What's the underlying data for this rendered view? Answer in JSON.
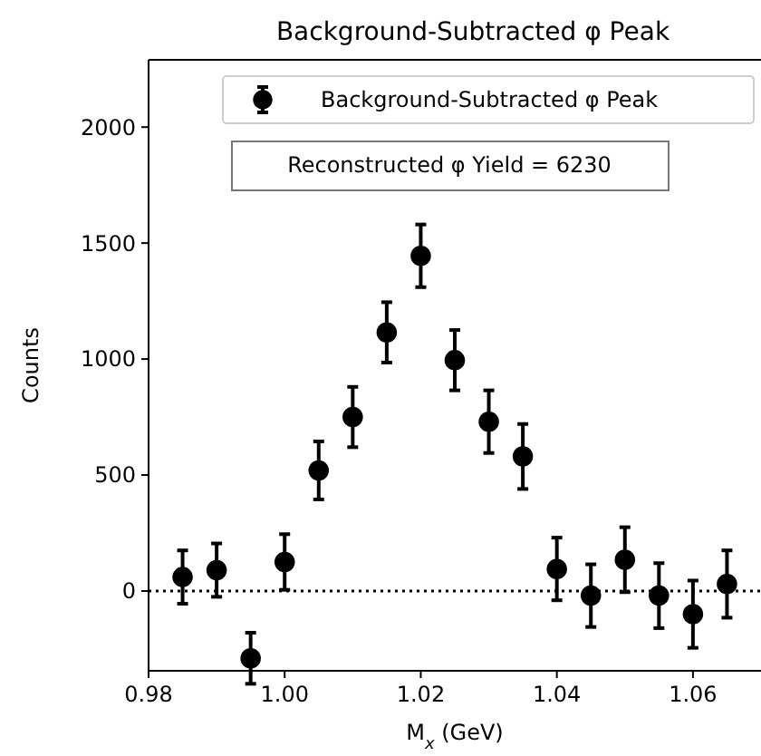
{
  "chart_data": {
    "type": "scatter",
    "title": "Background-Subtracted φ Peak",
    "xlabel": "M$_{x}$ (GeV)",
    "ylabel": "Counts",
    "x": [
      0.985,
      0.99,
      0.995,
      1.0,
      1.005,
      1.01,
      1.015,
      1.02,
      1.025,
      1.03,
      1.035,
      1.04,
      1.045,
      1.05,
      1.055,
      1.06,
      1.065
    ],
    "series": [
      {
        "name": "Background-Subtracted φ Peak",
        "color": "#000000",
        "values": [
          60,
          90,
          -290,
          125,
          520,
          750,
          1115,
          1445,
          995,
          730,
          580,
          95,
          -20,
          135,
          -20,
          -100,
          30
        ],
        "errors": [
          115,
          115,
          110,
          120,
          125,
          130,
          130,
          135,
          130,
          135,
          140,
          135,
          135,
          140,
          140,
          145,
          145
        ]
      }
    ],
    "xlim": [
      0.98,
      1.07
    ],
    "xticks": [
      {
        "value": 0.98,
        "label": "0.98"
      },
      {
        "value": 1.0,
        "label": "1.00"
      },
      {
        "value": 1.02,
        "label": "1.02"
      },
      {
        "value": 1.04,
        "label": "1.04"
      },
      {
        "value": 1.06,
        "label": "1.06"
      }
    ],
    "ylim": [
      -344,
      2290
    ],
    "yticks": [
      0,
      500,
      1000,
      1500,
      2000
    ],
    "ref_lines": [
      {
        "axis": "y",
        "value": 0,
        "color": "#000000",
        "line_style": "dotted"
      }
    ],
    "annotations": [
      "Reconstructed φ Yield = 6230"
    ],
    "legend": "top right",
    "marker": "circle",
    "grid": false
  }
}
